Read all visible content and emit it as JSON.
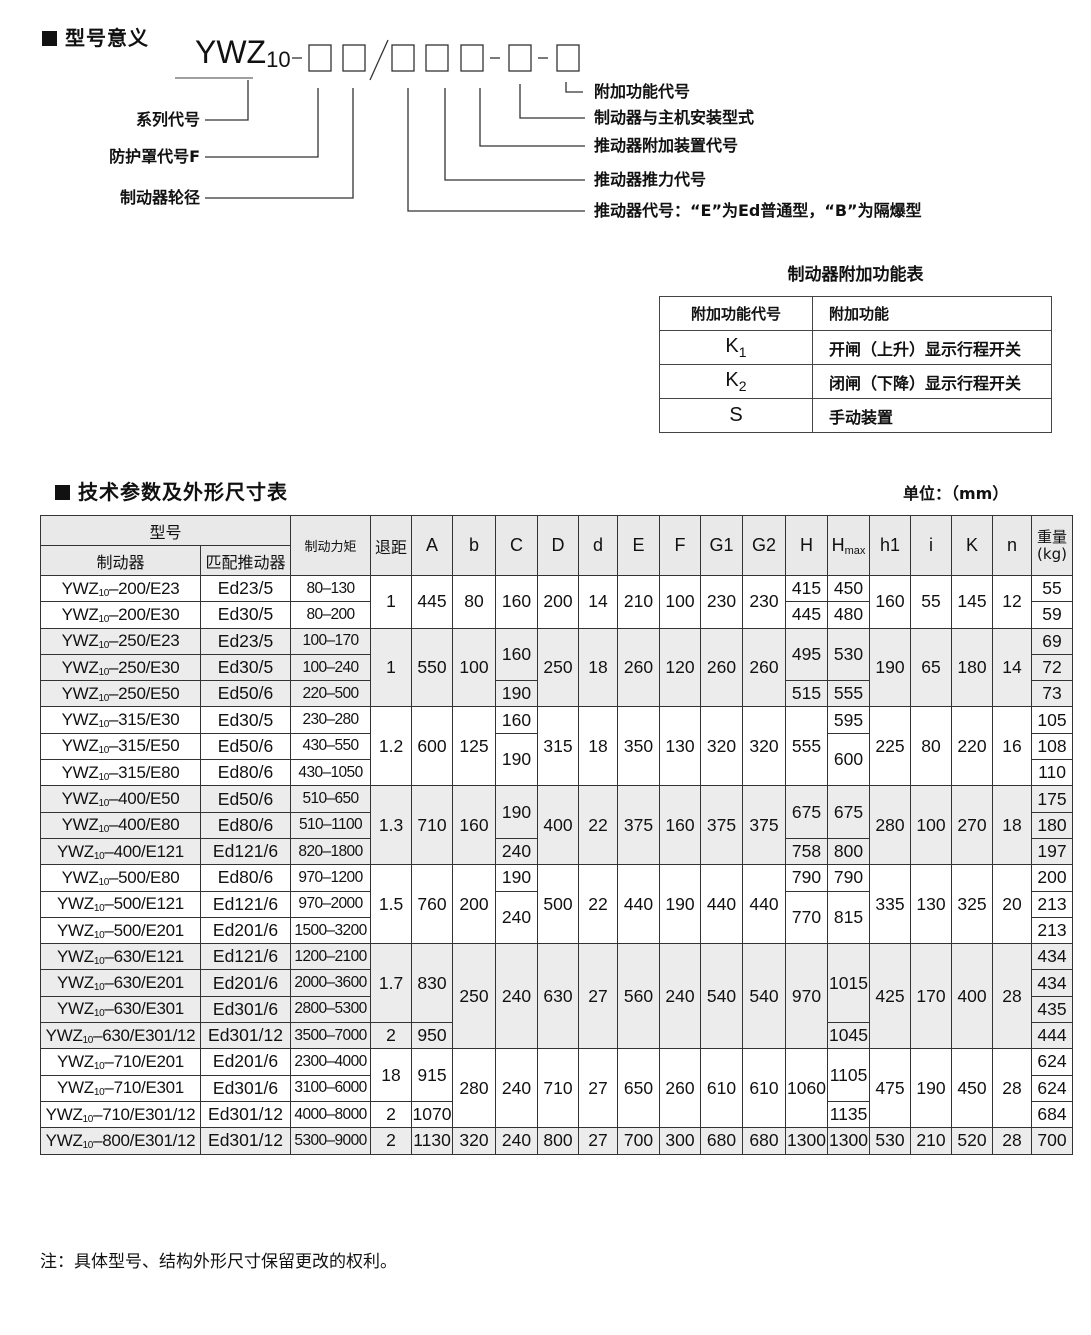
{
  "model_meaning": {
    "title": "型号意义",
    "code_base": "YWZ",
    "code_sub": "10",
    "left_labels": [
      "系列代号",
      "防护罩代号F",
      "制动器轮径"
    ],
    "right_labels": [
      "附加功能代号",
      "制动器与主机安装型式",
      "推动器附加装置代号",
      "推动器推力代号",
      "推动器代号：“E”为Ed普通型，“B”为隔爆型"
    ]
  },
  "function_table": {
    "title": "制动器附加功能表",
    "headers": [
      "附加功能代号",
      "附加功能"
    ],
    "rows": [
      {
        "code": "K",
        "sub": "1",
        "desc": "开闸（上升）显示行程开关"
      },
      {
        "code": "K",
        "sub": "2",
        "desc": "闭闸（下降）显示行程开关"
      },
      {
        "code": "S",
        "sub": "",
        "desc": "手动装置"
      }
    ]
  },
  "spec_section": {
    "title": "技术参数及外形尺寸表",
    "unit": "单位：（mm）"
  },
  "table": {
    "header": {
      "model_group": "型号",
      "brake": "制动器",
      "actuator": "匹配推动器",
      "torque": "制动力矩",
      "retreat": "退距",
      "dims": [
        "A",
        "b",
        "C",
        "D",
        "d",
        "E",
        "F",
        "G1",
        "G2",
        "H"
      ],
      "hmax_base": "H",
      "hmax_sub": "max",
      "dims2": [
        "h1",
        "i",
        "K",
        "n"
      ],
      "weight_line1": "重量",
      "weight_line2": "(kg)"
    },
    "groups": [
      {
        "rows": [
          [
            {
              "base": "YWZ",
              "sub": "10",
              "suffix": "–200/E23"
            },
            "Ed23/5",
            "80–130",
            [
              "1",
              2
            ],
            [
              "445",
              2
            ],
            [
              "80",
              2
            ],
            [
              "160",
              2
            ],
            [
              "200",
              2
            ],
            [
              "14",
              2
            ],
            [
              "210",
              2
            ],
            [
              "100",
              2
            ],
            [
              "230",
              2
            ],
            [
              "230",
              2
            ],
            "415",
            "450",
            [
              "160",
              2
            ],
            [
              "55",
              2
            ],
            [
              "145",
              2
            ],
            [
              "12",
              2
            ],
            "55"
          ],
          [
            {
              "base": "YWZ",
              "sub": "10",
              "suffix": "–200/E30"
            },
            "Ed30/5",
            "80–200",
            "445",
            "480",
            "59"
          ]
        ]
      },
      {
        "rows": [
          [
            {
              "base": "YWZ",
              "sub": "10",
              "suffix": "–250/E23"
            },
            "Ed23/5",
            "100–170",
            [
              "1",
              3
            ],
            [
              "550",
              3
            ],
            [
              "100",
              3
            ],
            [
              "160",
              2
            ],
            [
              "250",
              3
            ],
            [
              "18",
              3
            ],
            [
              "260",
              3
            ],
            [
              "120",
              3
            ],
            [
              "260",
              3
            ],
            [
              "260",
              3
            ],
            [
              "495",
              2
            ],
            [
              "530",
              2
            ],
            [
              "190",
              3
            ],
            [
              "65",
              3
            ],
            [
              "180",
              3
            ],
            [
              "14",
              3
            ],
            "69"
          ],
          [
            {
              "base": "YWZ",
              "sub": "10",
              "suffix": "–250/E30"
            },
            "Ed30/5",
            "100–240",
            "72"
          ],
          [
            {
              "base": "YWZ",
              "sub": "10",
              "suffix": "–250/E50"
            },
            "Ed50/6",
            "220–500",
            "190",
            "515",
            "555",
            "73"
          ]
        ]
      },
      {
        "rows": [
          [
            {
              "base": "YWZ",
              "sub": "10",
              "suffix": "–315/E30"
            },
            "Ed30/5",
            "230–280",
            [
              "1.2",
              3
            ],
            [
              "600",
              3
            ],
            [
              "125",
              3
            ],
            "160",
            [
              "315",
              3
            ],
            [
              "18",
              3
            ],
            [
              "350",
              3
            ],
            [
              "130",
              3
            ],
            [
              "320",
              3
            ],
            [
              "320",
              3
            ],
            [
              "555",
              3
            ],
            "595",
            [
              "225",
              3
            ],
            [
              "80",
              3
            ],
            [
              "220",
              3
            ],
            [
              "16",
              3
            ],
            "105"
          ],
          [
            {
              "base": "YWZ",
              "sub": "10",
              "suffix": "–315/E50"
            },
            "Ed50/6",
            "430–550",
            [
              "190",
              2
            ],
            [
              "600",
              2
            ],
            "108"
          ],
          [
            {
              "base": "YWZ",
              "sub": "10",
              "suffix": "–315/E80"
            },
            "Ed80/6",
            "430–1050",
            "110"
          ]
        ]
      },
      {
        "rows": [
          [
            {
              "base": "YWZ",
              "sub": "10",
              "suffix": "–400/E50"
            },
            "Ed50/6",
            "510–650",
            [
              "1.3",
              3
            ],
            [
              "710",
              3
            ],
            [
              "160",
              3
            ],
            [
              "190",
              2
            ],
            [
              "400",
              3
            ],
            [
              "22",
              3
            ],
            [
              "375",
              3
            ],
            [
              "160",
              3
            ],
            [
              "375",
              3
            ],
            [
              "375",
              3
            ],
            [
              "675",
              2
            ],
            [
              "675",
              2
            ],
            [
              "280",
              3
            ],
            [
              "100",
              3
            ],
            [
              "270",
              3
            ],
            [
              "18",
              3
            ],
            "175"
          ],
          [
            {
              "base": "YWZ",
              "sub": "10",
              "suffix": "–400/E80"
            },
            "Ed80/6",
            "510–1100",
            "180"
          ],
          [
            {
              "base": "YWZ",
              "sub": "10",
              "suffix": "–400/E121"
            },
            "Ed121/6",
            "820–1800",
            "240",
            "758",
            "800",
            "197"
          ]
        ]
      },
      {
        "rows": [
          [
            {
              "base": "YWZ",
              "sub": "10",
              "suffix": "–500/E80"
            },
            "Ed80/6",
            "970–1200",
            [
              "1.5",
              3
            ],
            [
              "760",
              3
            ],
            [
              "200",
              3
            ],
            "190",
            [
              "500",
              3
            ],
            [
              "22",
              3
            ],
            [
              "440",
              3
            ],
            [
              "190",
              3
            ],
            [
              "440",
              3
            ],
            [
              "440",
              3
            ],
            "790",
            "790",
            [
              "335",
              3
            ],
            [
              "130",
              3
            ],
            [
              "325",
              3
            ],
            [
              "20",
              3
            ],
            "200"
          ],
          [
            {
              "base": "YWZ",
              "sub": "10",
              "suffix": "–500/E121"
            },
            "Ed121/6",
            "970–2000",
            [
              "240",
              2
            ],
            [
              "770",
              2
            ],
            [
              "815",
              2
            ],
            "213"
          ],
          [
            {
              "base": "YWZ",
              "sub": "10",
              "suffix": "–500/E201"
            },
            "Ed201/6",
            "1500–3200",
            "213"
          ]
        ]
      },
      {
        "rows": [
          [
            {
              "base": "YWZ",
              "sub": "10",
              "suffix": "–630/E121"
            },
            "Ed121/6",
            "1200–2100",
            [
              "1.7",
              3
            ],
            [
              "830",
              3
            ],
            [
              "250",
              4
            ],
            [
              "240",
              4
            ],
            [
              "630",
              4
            ],
            [
              "27",
              4
            ],
            [
              "560",
              4
            ],
            [
              "240",
              4
            ],
            [
              "540",
              4
            ],
            [
              "540",
              4
            ],
            [
              "970",
              4
            ],
            [
              "1015",
              3
            ],
            [
              "425",
              4
            ],
            [
              "170",
              4
            ],
            [
              "400",
              4
            ],
            [
              "28",
              4
            ],
            "434"
          ],
          [
            {
              "base": "YWZ",
              "sub": "10",
              "suffix": "–630/E201"
            },
            "Ed201/6",
            "2000–3600",
            "434"
          ],
          [
            {
              "base": "YWZ",
              "sub": "10",
              "suffix": "–630/E301"
            },
            "Ed301/6",
            "2800–5300",
            "435"
          ],
          [
            {
              "base": "YWZ",
              "sub": "10",
              "suffix": "–630/E301/12"
            },
            "Ed301/12",
            "3500–7000",
            "2",
            "950",
            "1045",
            "444"
          ]
        ]
      },
      {
        "rows": [
          [
            {
              "base": "YWZ",
              "sub": "10",
              "suffix": "–710/E201"
            },
            "Ed201/6",
            "2300–4000",
            [
              "18",
              2
            ],
            [
              "915",
              2
            ],
            [
              "280",
              3
            ],
            [
              "240",
              3
            ],
            [
              "710",
              3
            ],
            [
              "27",
              3
            ],
            [
              "650",
              3
            ],
            [
              "260",
              3
            ],
            [
              "610",
              3
            ],
            [
              "610",
              3
            ],
            [
              "1060",
              3
            ],
            [
              "1105",
              2
            ],
            [
              "475",
              3
            ],
            [
              "190",
              3
            ],
            [
              "450",
              3
            ],
            [
              "28",
              3
            ],
            "624"
          ],
          [
            {
              "base": "YWZ",
              "sub": "10",
              "suffix": "–710/E301"
            },
            "Ed301/6",
            "3100–6000",
            "624"
          ],
          [
            {
              "base": "YWZ",
              "sub": "10",
              "suffix": "–710/E301/12"
            },
            "Ed301/12",
            "4000–8000",
            "2",
            "1070",
            "1135",
            "684"
          ]
        ]
      },
      {
        "rows": [
          [
            {
              "base": "YWZ",
              "sub": "10",
              "suffix": "–800/E301/12"
            },
            "Ed301/12",
            "5300–9000",
            "2",
            "1130",
            "320",
            "240",
            "800",
            "27",
            "700",
            "300",
            "680",
            "680",
            "1300",
            "1300",
            "530",
            "210",
            "520",
            "28",
            "700"
          ]
        ]
      }
    ],
    "shading_colors": {
      "odd_group": "#ececec",
      "even_group": "#ffffff",
      "header": "#e9e9e9"
    }
  },
  "note": "注：具体型号、结构外形尺寸保留更改的权利。"
}
